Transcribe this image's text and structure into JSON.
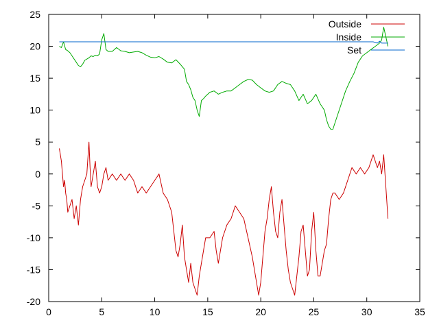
{
  "chart_data": {
    "type": "line",
    "title": "",
    "xlabel": "",
    "ylabel": "",
    "xlim": [
      0,
      35
    ],
    "ylim": [
      -20,
      25
    ],
    "grid": false,
    "legend_position": "top-right",
    "x_ticks": [
      {
        "value": 0,
        "label": "0"
      },
      {
        "value": 5,
        "label": "5"
      },
      {
        "value": 10,
        "label": "10"
      },
      {
        "value": 15,
        "label": "15"
      },
      {
        "value": 20,
        "label": "20"
      },
      {
        "value": 25,
        "label": "25"
      },
      {
        "value": 30,
        "label": "30"
      },
      {
        "value": 35,
        "label": "35"
      }
    ],
    "y_ticks": [
      {
        "value": -20,
        "label": "-20"
      },
      {
        "value": -15,
        "label": "-15"
      },
      {
        "value": -10,
        "label": "-10"
      },
      {
        "value": -5,
        "label": "-5"
      },
      {
        "value": 0,
        "label": "0"
      },
      {
        "value": 5,
        "label": "5"
      },
      {
        "value": 10,
        "label": "10"
      },
      {
        "value": 15,
        "label": "15"
      },
      {
        "value": 20,
        "label": "20"
      },
      {
        "value": 25,
        "label": "25"
      }
    ],
    "series": [
      {
        "name": "Outside",
        "color": "#cc0000",
        "x": [
          1.0,
          1.2,
          1.4,
          1.5,
          1.6,
          1.7,
          1.8,
          2.0,
          2.2,
          2.4,
          2.6,
          2.8,
          3.0,
          3.2,
          3.4,
          3.6,
          3.8,
          3.9,
          4.0,
          4.2,
          4.4,
          4.6,
          4.8,
          5.0,
          5.2,
          5.4,
          5.6,
          6.0,
          6.4,
          6.8,
          7.2,
          7.6,
          8.0,
          8.4,
          8.8,
          9.2,
          9.6,
          10.0,
          10.4,
          10.8,
          11.2,
          11.6,
          11.8,
          12.0,
          12.2,
          12.4,
          12.6,
          12.8,
          13.0,
          13.2,
          13.4,
          13.6,
          13.8,
          14.0,
          14.2,
          14.4,
          14.6,
          14.8,
          15.2,
          15.6,
          15.8,
          16.0,
          16.2,
          16.4,
          16.6,
          16.8,
          17.2,
          17.6,
          18.0,
          18.4,
          18.8,
          19.2,
          19.4,
          19.6,
          19.8,
          20.0,
          20.2,
          20.4,
          20.6,
          20.8,
          21.0,
          21.2,
          21.4,
          21.6,
          21.8,
          22.0,
          22.2,
          22.4,
          22.6,
          22.8,
          23.0,
          23.2,
          23.4,
          23.6,
          23.8,
          24.0,
          24.2,
          24.4,
          24.6,
          24.8,
          25.0,
          25.2,
          25.4,
          25.6,
          25.8,
          26.0,
          26.2,
          26.4,
          26.6,
          26.8,
          27.0,
          27.4,
          27.8,
          28.2,
          28.6,
          29.0,
          29.4,
          29.8,
          30.2,
          30.6,
          31.0,
          31.2,
          31.4,
          31.6,
          31.8,
          32.0
        ],
        "y": [
          4,
          2,
          -2,
          -1,
          -3,
          -4,
          -6,
          -5,
          -4,
          -7,
          -5,
          -8,
          -4,
          -2,
          -1,
          0,
          5,
          1,
          -2,
          0,
          2,
          -2,
          -3,
          -2,
          0,
          1,
          -1,
          0,
          -1,
          0,
          -1,
          0,
          -1,
          -3,
          -2,
          -3,
          -2,
          -1,
          0,
          -3,
          -4,
          -6,
          -9,
          -12,
          -13,
          -11,
          -8,
          -13,
          -15,
          -17,
          -14,
          -17,
          -18,
          -19,
          -16,
          -14,
          -12,
          -10,
          -10,
          -9,
          -12,
          -14,
          -12,
          -10,
          -9,
          -8,
          -7,
          -5,
          -6,
          -7,
          -10,
          -13,
          -15,
          -17,
          -19,
          -17,
          -13,
          -9,
          -7,
          -4,
          -2,
          -6,
          -9,
          -10,
          -6,
          -4,
          -8,
          -12,
          -15,
          -17,
          -18,
          -19,
          -16,
          -13,
          -9,
          -8,
          -12,
          -16,
          -15,
          -9,
          -6,
          -12,
          -16,
          -16,
          -14,
          -12,
          -11,
          -7,
          -4,
          -3,
          -3,
          -4,
          -3,
          -1,
          1,
          0,
          1,
          0,
          1,
          3,
          1,
          2,
          0,
          3,
          -2,
          -7
        ],
        "legend_label": "Outside"
      },
      {
        "name": "Inside",
        "color": "#00aa00",
        "x": [
          1.0,
          1.2,
          1.4,
          1.6,
          1.8,
          2.0,
          2.2,
          2.4,
          2.6,
          2.8,
          3.0,
          3.2,
          3.4,
          3.6,
          3.8,
          4.0,
          4.2,
          4.4,
          4.6,
          4.8,
          5.0,
          5.2,
          5.4,
          5.6,
          6.0,
          6.4,
          6.8,
          7.2,
          7.6,
          8.0,
          8.4,
          8.8,
          9.2,
          9.6,
          10.0,
          10.4,
          10.8,
          11.2,
          11.6,
          12.0,
          12.4,
          12.8,
          13.0,
          13.2,
          13.4,
          13.6,
          13.8,
          14.0,
          14.2,
          14.4,
          14.6,
          14.8,
          15.2,
          15.6,
          16.0,
          16.4,
          16.8,
          17.2,
          17.6,
          18.0,
          18.4,
          18.8,
          19.2,
          19.6,
          20.0,
          20.4,
          20.8,
          21.2,
          21.6,
          22.0,
          22.4,
          22.8,
          23.2,
          23.6,
          24.0,
          24.4,
          24.8,
          25.2,
          25.6,
          26.0,
          26.2,
          26.4,
          26.6,
          26.8,
          27.2,
          27.6,
          28.0,
          28.4,
          28.8,
          29.2,
          29.6,
          30.0,
          30.4,
          30.8,
          31.2,
          31.4,
          31.6,
          31.8,
          32.0
        ],
        "y": [
          20,
          19.8,
          20.7,
          19.5,
          19.3,
          19.0,
          18.5,
          18.0,
          17.5,
          17.0,
          16.8,
          17.2,
          17.8,
          18.0,
          18.2,
          18.5,
          18.4,
          18.6,
          18.5,
          18.8,
          21,
          22,
          19.5,
          19.2,
          19.2,
          19.8,
          19.3,
          19.2,
          19.0,
          19.1,
          19.2,
          19.0,
          18.6,
          18.3,
          18.2,
          18.4,
          18.0,
          17.5,
          17.4,
          17.9,
          17.2,
          16.4,
          14.5,
          14.0,
          13.2,
          12.0,
          11.5,
          10.0,
          9.0,
          11.5,
          11.8,
          12.2,
          12.8,
          13.0,
          12.5,
          12.8,
          13.0,
          13.0,
          13.5,
          14.0,
          14.5,
          14.8,
          14.7,
          14.0,
          13.5,
          13.0,
          12.8,
          13.0,
          14.0,
          14.5,
          14.2,
          14.0,
          13.0,
          11.5,
          12.5,
          11.0,
          11.5,
          12.5,
          11.0,
          10.0,
          8.5,
          7.5,
          7.0,
          7.0,
          9.0,
          11.0,
          13.0,
          14.5,
          15.8,
          17.5,
          18.5,
          19.0,
          19.5,
          20.0,
          20.5,
          21.0,
          23.0,
          21.5,
          20.0
        ],
        "legend_label": "Inside"
      },
      {
        "name": "Set",
        "color": "#0066cc",
        "x": [
          1.0,
          30.6,
          31.0,
          31.2,
          31.4,
          32.0
        ],
        "y": [
          20.7,
          20.7,
          20.5,
          20.8,
          20.5,
          20.5
        ],
        "legend_label": "Set"
      }
    ]
  }
}
